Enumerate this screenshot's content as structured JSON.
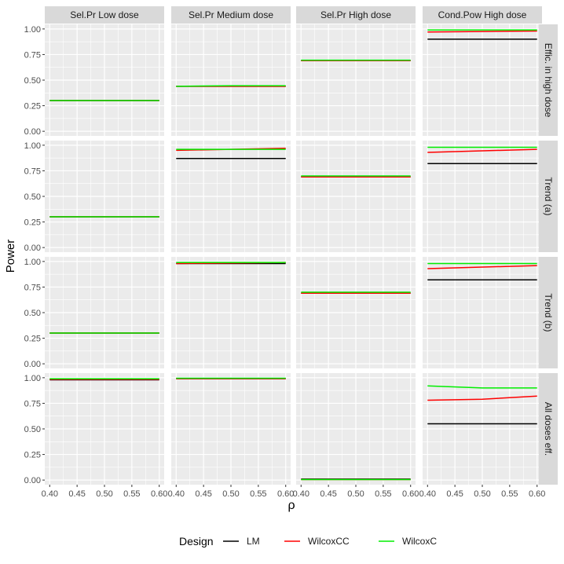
{
  "chart_data": {
    "type": "line",
    "title": "",
    "xlabel": "ρ",
    "ylabel": "Power",
    "xlim": [
      0.4,
      0.6
    ],
    "ylim": [
      0,
      1
    ],
    "x_ticks": [
      "0.40",
      "0.45",
      "0.50",
      "0.55",
      "0.60"
    ],
    "y_ticks": [
      "0.00",
      "0.25",
      "0.50",
      "0.75",
      "1.00"
    ],
    "x": [
      0.4,
      0.5,
      0.6
    ],
    "grid": true,
    "legend": {
      "title": "Design",
      "placement": "bottom",
      "entries": [
        {
          "name": "LM",
          "color": "#000000"
        },
        {
          "name": "WilcoxCC",
          "color": "#ff0000"
        },
        {
          "name": "WilcoxC",
          "color": "#00ee00"
        }
      ]
    },
    "columns": [
      "Sel.Pr Low dose",
      "Sel.Pr Medium dose",
      "Sel.Pr High dose",
      "Cond.Pow High dose"
    ],
    "rows": [
      "Effic. in high dose",
      "Trend (a)",
      "Trend (b)",
      "All doses eff."
    ],
    "panels": [
      [
        {
          "LM": [
            0.3,
            0.3,
            0.3
          ],
          "WilcoxCC": [
            0.3,
            0.3,
            0.3
          ],
          "WilcoxC": [
            0.3,
            0.3,
            0.3
          ]
        },
        {
          "LM": [
            0.44,
            0.44,
            0.44
          ],
          "WilcoxCC": [
            0.44,
            0.44,
            0.44
          ],
          "WilcoxC": [
            0.44,
            0.445,
            0.445
          ]
        },
        {
          "LM": [
            0.69,
            0.69,
            0.69
          ],
          "WilcoxCC": [
            0.69,
            0.69,
            0.69
          ],
          "WilcoxC": [
            0.695,
            0.695,
            0.695
          ]
        },
        {
          "LM": [
            0.9,
            0.9,
            0.9
          ],
          "WilcoxCC": [
            0.97,
            0.975,
            0.98
          ],
          "WilcoxC": [
            0.99,
            0.99,
            0.99
          ]
        }
      ],
      [
        {
          "LM": [
            0.3,
            0.3,
            0.3
          ],
          "WilcoxCC": [
            0.3,
            0.3,
            0.3
          ],
          "WilcoxC": [
            0.3,
            0.3,
            0.3
          ]
        },
        {
          "LM": [
            0.87,
            0.87,
            0.87
          ],
          "WilcoxCC": [
            0.95,
            0.96,
            0.97
          ],
          "WilcoxC": [
            0.96,
            0.96,
            0.96
          ]
        },
        {
          "LM": [
            0.69,
            0.69,
            0.69
          ],
          "WilcoxCC": [
            0.69,
            0.69,
            0.69
          ],
          "WilcoxC": [
            0.7,
            0.7,
            0.7
          ]
        },
        {
          "LM": [
            0.82,
            0.82,
            0.82
          ],
          "WilcoxCC": [
            0.93,
            0.945,
            0.96
          ],
          "WilcoxC": [
            0.98,
            0.98,
            0.98
          ]
        }
      ],
      [
        {
          "LM": [
            0.3,
            0.3,
            0.3
          ],
          "WilcoxCC": [
            0.3,
            0.3,
            0.3
          ],
          "WilcoxC": [
            0.3,
            0.3,
            0.3
          ]
        },
        {
          "LM": [
            0.98,
            0.98,
            0.98
          ],
          "WilcoxCC": [
            0.98,
            0.985,
            0.99
          ],
          "WilcoxC": [
            0.99,
            0.99,
            0.99
          ]
        },
        {
          "LM": [
            0.69,
            0.69,
            0.69
          ],
          "WilcoxCC": [
            0.69,
            0.69,
            0.69
          ],
          "WilcoxC": [
            0.7,
            0.7,
            0.7
          ]
        },
        {
          "LM": [
            0.82,
            0.82,
            0.82
          ],
          "WilcoxCC": [
            0.93,
            0.945,
            0.96
          ],
          "WilcoxC": [
            0.98,
            0.98,
            0.98
          ]
        }
      ],
      [
        {
          "LM": [
            0.98,
            0.98,
            0.98
          ],
          "WilcoxCC": [
            0.985,
            0.985,
            0.985
          ],
          "WilcoxC": [
            0.99,
            0.99,
            0.99
          ]
        },
        {
          "LM": [
            0.99,
            0.99,
            0.99
          ],
          "WilcoxCC": [
            0.99,
            0.99,
            0.99
          ],
          "WilcoxC": [
            0.995,
            0.995,
            0.995
          ]
        },
        {
          "LM": [
            0.01,
            0.01,
            0.01
          ],
          "WilcoxCC": [
            0.005,
            0.005,
            0.005
          ],
          "WilcoxC": [
            0.005,
            0.005,
            0.005
          ]
        },
        {
          "LM": [
            0.55,
            0.55,
            0.55
          ],
          "WilcoxCC": [
            0.78,
            0.79,
            0.82
          ],
          "WilcoxC": [
            0.92,
            0.9,
            0.9
          ]
        }
      ]
    ]
  }
}
